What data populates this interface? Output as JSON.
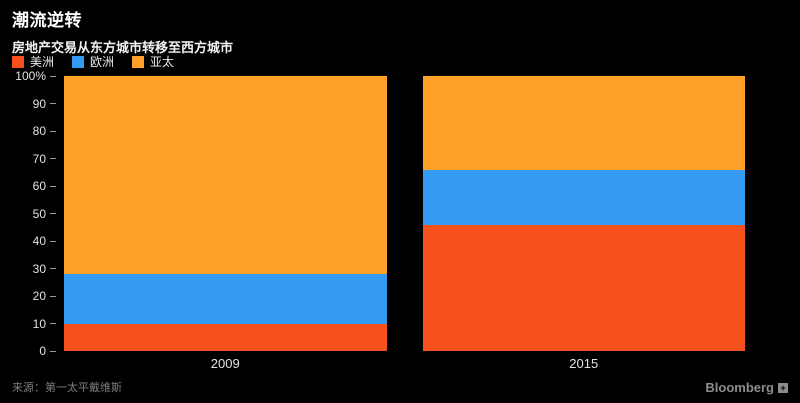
{
  "header": {
    "title": "潮流逆转",
    "subtitle": "房地产交易从东方城市转移至西方城市"
  },
  "chart_data": {
    "type": "bar",
    "stacked": true,
    "title": "潮流逆转",
    "subtitle": "房地产交易从东方城市转移至西方城市",
    "categories": [
      "2009",
      "2015"
    ],
    "series": [
      {
        "name": "美洲",
        "color": "#f6511d",
        "values": [
          10,
          46
        ]
      },
      {
        "name": "欧洲",
        "color": "#339cf2",
        "values": [
          18,
          20
        ]
      },
      {
        "name": "亚太",
        "color": "#ffa028",
        "values": [
          72,
          34
        ]
      }
    ],
    "xlabel": "",
    "ylabel": "",
    "ylim": [
      0,
      100
    ],
    "yticks": [
      0,
      10,
      20,
      30,
      40,
      50,
      60,
      70,
      80,
      90,
      100
    ],
    "ytick_labels": [
      "0",
      "10",
      "20",
      "30",
      "40",
      "50",
      "60",
      "70",
      "80",
      "90",
      "100%"
    ],
    "grid": false,
    "legend_position": "top-left",
    "background": "#000000"
  },
  "footer": {
    "source": "来源：第一太平戴维斯",
    "brand": "Bloomberg"
  }
}
